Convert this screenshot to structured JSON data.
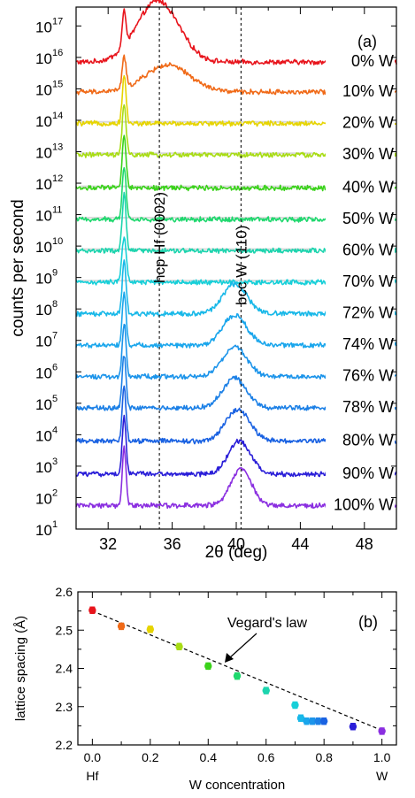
{
  "chart_data": [
    {
      "type": "line",
      "panel_label": "(a)",
      "xlabel": "2θ (deg)",
      "ylabel": "counts per second",
      "xlim": [
        30,
        50
      ],
      "ylim_log10": [
        1,
        17.6
      ],
      "yscale": "log",
      "x_ticks": [
        32,
        36,
        40,
        44,
        48
      ],
      "y_tick_exponents": [
        1,
        2,
        3,
        4,
        5,
        6,
        7,
        8,
        9,
        10,
        11,
        12,
        13,
        14,
        15,
        16,
        17
      ],
      "y_tick_base": "10",
      "grid": false,
      "annotations": [
        {
          "text": "hcp Hf (0002)",
          "x": 35.2
        },
        {
          "text": "bcc W (110)",
          "x": 40.3
        }
      ],
      "reflection_lines_x": [
        35.2,
        40.3
      ],
      "series": [
        {
          "name": "0% W",
          "color": "#e8141c",
          "baseline_log10": 15.85,
          "peaks": [
            {
              "center": 33.0,
              "height": 1.1,
              "width": 0.12
            },
            {
              "center": 35.1,
              "height": 1.95,
              "width": 1.3
            }
          ],
          "noise": 0.07
        },
        {
          "name": "10% W",
          "color": "#f06a18",
          "baseline_log10": 14.9,
          "peaks": [
            {
              "center": 33.0,
              "height": 1.0,
              "width": 0.12
            },
            {
              "center": 35.7,
              "height": 0.85,
              "width": 1.4
            }
          ],
          "noise": 0.07
        },
        {
          "name": "20% W",
          "color": "#e6d400",
          "baseline_log10": 13.9,
          "peaks": [
            {
              "center": 33.0,
              "height": 1.5,
              "width": 0.12
            }
          ],
          "noise": 0.07
        },
        {
          "name": "30% W",
          "color": "#a8dc14",
          "baseline_log10": 12.9,
          "peaks": [
            {
              "center": 33.0,
              "height": 1.6,
              "width": 0.12
            }
          ],
          "noise": 0.07
        },
        {
          "name": "40% W",
          "color": "#3ad21a",
          "baseline_log10": 11.85,
          "peaks": [
            {
              "center": 33.0,
              "height": 1.7,
              "width": 0.12
            }
          ],
          "noise": 0.07
        },
        {
          "name": "50% W",
          "color": "#1fd86e",
          "baseline_log10": 10.85,
          "peaks": [
            {
              "center": 33.0,
              "height": 1.7,
              "width": 0.12
            }
          ],
          "noise": 0.07
        },
        {
          "name": "60% W",
          "color": "#1cd4ae",
          "baseline_log10": 9.85,
          "peaks": [
            {
              "center": 33.0,
              "height": 1.8,
              "width": 0.12
            }
          ],
          "noise": 0.07
        },
        {
          "name": "70% W",
          "color": "#16cfd8",
          "baseline_log10": 8.85,
          "peaks": [
            {
              "center": 33.0,
              "height": 1.4,
              "width": 0.14
            }
          ],
          "noise": 0.07
        },
        {
          "name": "72% W",
          "color": "#18b8e8",
          "baseline_log10": 7.85,
          "peaks": [
            {
              "center": 33.0,
              "height": 1.7,
              "width": 0.12
            },
            {
              "center": 39.9,
              "height": 0.95,
              "width": 0.75
            }
          ],
          "noise": 0.07
        },
        {
          "name": "74% W",
          "color": "#1aa6ec",
          "baseline_log10": 6.85,
          "peaks": [
            {
              "center": 33.0,
              "height": 1.7,
              "width": 0.12
            },
            {
              "center": 39.9,
              "height": 0.95,
              "width": 0.75
            }
          ],
          "noise": 0.07
        },
        {
          "name": "76% W",
          "color": "#1c94ea",
          "baseline_log10": 5.85,
          "peaks": [
            {
              "center": 33.0,
              "height": 1.7,
              "width": 0.12
            },
            {
              "center": 39.9,
              "height": 0.95,
              "width": 0.75
            }
          ],
          "noise": 0.07
        },
        {
          "name": "78% W",
          "color": "#1c80e6",
          "baseline_log10": 4.85,
          "peaks": [
            {
              "center": 33.0,
              "height": 1.7,
              "width": 0.12
            },
            {
              "center": 39.9,
              "height": 0.95,
              "width": 0.75
            }
          ],
          "noise": 0.07
        },
        {
          "name": "80% W",
          "color": "#1a62e2",
          "baseline_log10": 3.8,
          "peaks": [
            {
              "center": 33.0,
              "height": 1.7,
              "width": 0.12
            },
            {
              "center": 40.1,
              "height": 1.0,
              "width": 0.75
            }
          ],
          "noise": 0.07
        },
        {
          "name": "90% W",
          "color": "#2a1ed8",
          "baseline_log10": 2.75,
          "peaks": [
            {
              "center": 33.0,
              "height": 1.8,
              "width": 0.12
            },
            {
              "center": 40.2,
              "height": 1.05,
              "width": 0.7
            }
          ],
          "noise": 0.07
        },
        {
          "name": "100% W",
          "color": "#8a2ee0",
          "baseline_log10": 1.75,
          "peaks": [
            {
              "center": 33.0,
              "height": 1.85,
              "width": 0.12
            },
            {
              "center": 40.3,
              "height": 1.15,
              "width": 0.65
            }
          ],
          "noise": 0.07
        }
      ]
    },
    {
      "type": "scatter",
      "panel_label": "(b)",
      "xlabel": "W concentration",
      "ylabel": "lattice spacing (Å)",
      "xlim": [
        -0.05,
        1.05
      ],
      "ylim": [
        2.2,
        2.6
      ],
      "x_ticks": [
        "0.0",
        "0.2",
        "0.4",
        "0.6",
        "0.8",
        "1.0"
      ],
      "y_ticks": [
        "2.2",
        "2.3",
        "2.4",
        "2.5",
        "2.6"
      ],
      "x_end_labels": [
        "Hf",
        "W"
      ],
      "grid": false,
      "trend_line": {
        "label": "Vegard's law",
        "x": [
          0.0,
          1.0
        ],
        "y": [
          2.55,
          2.238
        ]
      },
      "points": [
        {
          "x": 0.0,
          "y": 2.552,
          "color": "#e8141c"
        },
        {
          "x": 0.1,
          "y": 2.51,
          "color": "#f06a18"
        },
        {
          "x": 0.2,
          "y": 2.502,
          "color": "#e6d400"
        },
        {
          "x": 0.3,
          "y": 2.457,
          "color": "#a8dc14"
        },
        {
          "x": 0.4,
          "y": 2.406,
          "color": "#3ad21a"
        },
        {
          "x": 0.5,
          "y": 2.38,
          "color": "#1fd86e"
        },
        {
          "x": 0.6,
          "y": 2.342,
          "color": "#1cd4ae"
        },
        {
          "x": 0.7,
          "y": 2.304,
          "color": "#16cfd8"
        },
        {
          "x": 0.72,
          "y": 2.27,
          "color": "#18b8e8"
        },
        {
          "x": 0.74,
          "y": 2.262,
          "color": "#1aa6ec"
        },
        {
          "x": 0.76,
          "y": 2.262,
          "color": "#1c94ea"
        },
        {
          "x": 0.78,
          "y": 2.262,
          "color": "#1c80e6"
        },
        {
          "x": 0.8,
          "y": 2.262,
          "color": "#1a62e2"
        },
        {
          "x": 0.9,
          "y": 2.248,
          "color": "#2a1ed8"
        },
        {
          "x": 1.0,
          "y": 2.236,
          "color": "#8a2ee0"
        }
      ],
      "error_bar": 0.008
    }
  ]
}
